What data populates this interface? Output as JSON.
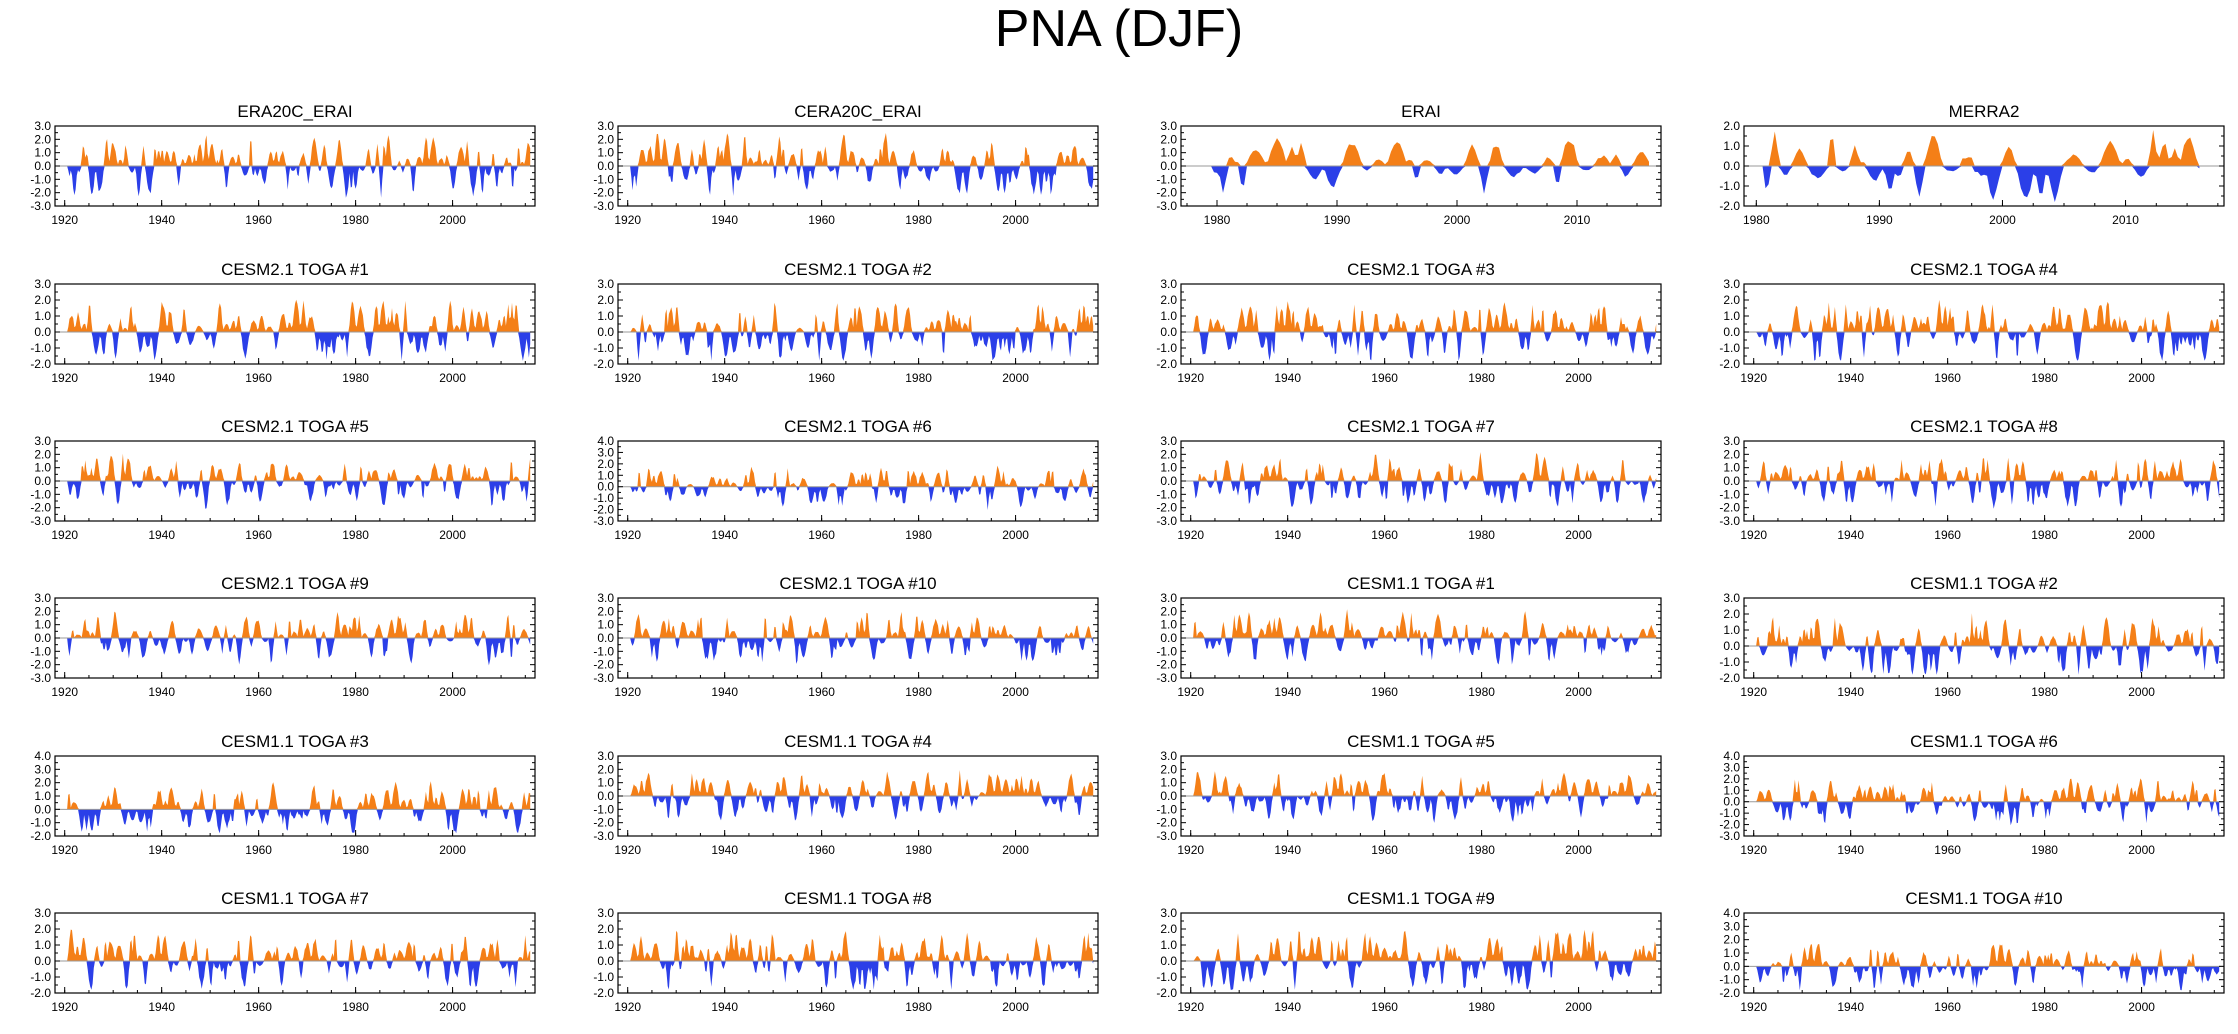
{
  "title": "PNA (DJF)",
  "colors": {
    "positive": "#f47f17",
    "negative": "#2b3fe8",
    "axis": "#000000"
  },
  "chart_data": [
    {
      "type": "area",
      "title": "ERA20C_ERAI",
      "x_start": 1920,
      "x_end": 2016,
      "xlim": [
        1918,
        2017
      ],
      "ylim": [
        -3,
        3
      ],
      "yticks": [
        "3.0",
        "2.0",
        "1.0",
        "0.0",
        "-1.0",
        "-2.0",
        "-3.0"
      ],
      "xticks": [
        "1920",
        "1940",
        "1960",
        "1980",
        "2000"
      ],
      "seed": 11,
      "amp": 1.2
    },
    {
      "type": "area",
      "title": "CERA20C_ERAI",
      "x_start": 1920,
      "x_end": 2016,
      "xlim": [
        1918,
        2017
      ],
      "ylim": [
        -3,
        3
      ],
      "yticks": [
        "3.0",
        "2.0",
        "1.0",
        "0.0",
        "-1.0",
        "-2.0",
        "-3.0"
      ],
      "xticks": [
        "1920",
        "1940",
        "1960",
        "1980",
        "2000"
      ],
      "seed": 12,
      "amp": 1.2
    },
    {
      "type": "area",
      "title": "ERAI",
      "x_start": 1979,
      "x_end": 2016,
      "xlim": [
        1977,
        2017
      ],
      "ylim": [
        -3,
        3
      ],
      "yticks": [
        "3.0",
        "2.0",
        "1.0",
        "0.0",
        "-1.0",
        "-2.0",
        "-3.0"
      ],
      "xticks": [
        "1980",
        "1990",
        "2000",
        "2010"
      ],
      "seed": 13,
      "amp": 1.1
    },
    {
      "type": "area",
      "title": "MERRA2",
      "x_start": 1980,
      "x_end": 2016,
      "xlim": [
        1979,
        2018
      ],
      "ylim": [
        -2,
        2
      ],
      "yticks": [
        "2.0",
        "1.0",
        "0.0",
        "-1.0",
        "-2.0"
      ],
      "xticks": [
        "1980",
        "1990",
        "2000",
        "2010"
      ],
      "seed": 14,
      "amp": 0.9
    },
    {
      "type": "area",
      "title": "CESM2.1 TOGA #1",
      "x_start": 1920,
      "x_end": 2016,
      "xlim": [
        1918,
        2017
      ],
      "ylim": [
        -2,
        3
      ],
      "yticks": [
        "3.0",
        "2.0",
        "1.0",
        "0.0",
        "-1.0",
        "-2.0"
      ],
      "xticks": [
        "1920",
        "1940",
        "1960",
        "1980",
        "2000"
      ],
      "seed": 21,
      "amp": 1.0
    },
    {
      "type": "area",
      "title": "CESM2.1 TOGA #2",
      "x_start": 1920,
      "x_end": 2016,
      "xlim": [
        1918,
        2017
      ],
      "ylim": [
        -2,
        3
      ],
      "yticks": [
        "3.0",
        "2.0",
        "1.0",
        "0.0",
        "-1.0",
        "-2.0"
      ],
      "xticks": [
        "1920",
        "1940",
        "1960",
        "1980",
        "2000"
      ],
      "seed": 22,
      "amp": 1.0
    },
    {
      "type": "area",
      "title": "CESM2.1 TOGA #3",
      "x_start": 1920,
      "x_end": 2016,
      "xlim": [
        1918,
        2017
      ],
      "ylim": [
        -2,
        3
      ],
      "yticks": [
        "3.0",
        "2.0",
        "1.0",
        "0.0",
        "-1.0",
        "-2.0"
      ],
      "xticks": [
        "1920",
        "1940",
        "1960",
        "1980",
        "2000"
      ],
      "seed": 23,
      "amp": 1.0
    },
    {
      "type": "area",
      "title": "CESM2.1 TOGA #4",
      "x_start": 1920,
      "x_end": 2016,
      "xlim": [
        1918,
        2017
      ],
      "ylim": [
        -2,
        3
      ],
      "yticks": [
        "3.0",
        "2.0",
        "1.0",
        "0.0",
        "-1.0",
        "-2.0"
      ],
      "xticks": [
        "1920",
        "1940",
        "1960",
        "1980",
        "2000"
      ],
      "seed": 24,
      "amp": 1.0
    },
    {
      "type": "area",
      "title": "CESM2.1 TOGA #5",
      "x_start": 1920,
      "x_end": 2016,
      "xlim": [
        1918,
        2017
      ],
      "ylim": [
        -3,
        3
      ],
      "yticks": [
        "3.0",
        "2.0",
        "1.0",
        "0.0",
        "-1.0",
        "-2.0",
        "-3.0"
      ],
      "xticks": [
        "1920",
        "1940",
        "1960",
        "1980",
        "2000"
      ],
      "seed": 25,
      "amp": 1.0
    },
    {
      "type": "area",
      "title": "CESM2.1 TOGA #6",
      "x_start": 1920,
      "x_end": 2016,
      "xlim": [
        1918,
        2017
      ],
      "ylim": [
        -3,
        4
      ],
      "yticks": [
        "4.0",
        "3.0",
        "2.0",
        "1.0",
        "0.0",
        "-1.0",
        "-2.0",
        "-3.0"
      ],
      "xticks": [
        "1920",
        "1940",
        "1960",
        "1980",
        "2000"
      ],
      "seed": 26,
      "amp": 1.0
    },
    {
      "type": "area",
      "title": "CESM2.1 TOGA #7",
      "x_start": 1920,
      "x_end": 2016,
      "xlim": [
        1918,
        2017
      ],
      "ylim": [
        -3,
        3
      ],
      "yticks": [
        "3.0",
        "2.0",
        "1.0",
        "0.0",
        "-1.0",
        "-2.0",
        "-3.0"
      ],
      "xticks": [
        "1920",
        "1940",
        "1960",
        "1980",
        "2000"
      ],
      "seed": 27,
      "amp": 1.0
    },
    {
      "type": "area",
      "title": "CESM2.1 TOGA #8",
      "x_start": 1920,
      "x_end": 2016,
      "xlim": [
        1918,
        2017
      ],
      "ylim": [
        -3,
        3
      ],
      "yticks": [
        "3.0",
        "2.0",
        "1.0",
        "0.0",
        "-1.0",
        "-2.0",
        "-3.0"
      ],
      "xticks": [
        "1920",
        "1940",
        "1960",
        "1980",
        "2000"
      ],
      "seed": 28,
      "amp": 1.0
    },
    {
      "type": "area",
      "title": "CESM2.1 TOGA #9",
      "x_start": 1920,
      "x_end": 2016,
      "xlim": [
        1918,
        2017
      ],
      "ylim": [
        -3,
        3
      ],
      "yticks": [
        "3.0",
        "2.0",
        "1.0",
        "0.0",
        "-1.0",
        "-2.0",
        "-3.0"
      ],
      "xticks": [
        "1920",
        "1940",
        "1960",
        "1980",
        "2000"
      ],
      "seed": 29,
      "amp": 1.0
    },
    {
      "type": "area",
      "title": "CESM2.1 TOGA #10",
      "x_start": 1920,
      "x_end": 2016,
      "xlim": [
        1918,
        2017
      ],
      "ylim": [
        -3,
        3
      ],
      "yticks": [
        "3.0",
        "2.0",
        "1.0",
        "0.0",
        "-1.0",
        "-2.0",
        "-3.0"
      ],
      "xticks": [
        "1920",
        "1940",
        "1960",
        "1980",
        "2000"
      ],
      "seed": 30,
      "amp": 1.0
    },
    {
      "type": "area",
      "title": "CESM1.1 TOGA #1",
      "x_start": 1920,
      "x_end": 2016,
      "xlim": [
        1918,
        2017
      ],
      "ylim": [
        -3,
        3
      ],
      "yticks": [
        "3.0",
        "2.0",
        "1.0",
        "0.0",
        "-1.0",
        "-2.0",
        "-3.0"
      ],
      "xticks": [
        "1920",
        "1940",
        "1960",
        "1980",
        "2000"
      ],
      "seed": 31,
      "amp": 1.0
    },
    {
      "type": "area",
      "title": "CESM1.1 TOGA #2",
      "x_start": 1920,
      "x_end": 2016,
      "xlim": [
        1918,
        2017
      ],
      "ylim": [
        -2,
        3
      ],
      "yticks": [
        "3.0",
        "2.0",
        "1.0",
        "0.0",
        "-1.0",
        "-2.0"
      ],
      "xticks": [
        "1920",
        "1940",
        "1960",
        "1980",
        "2000"
      ],
      "seed": 32,
      "amp": 1.0
    },
    {
      "type": "area",
      "title": "CESM1.1 TOGA #3",
      "x_start": 1920,
      "x_end": 2016,
      "xlim": [
        1918,
        2017
      ],
      "ylim": [
        -2,
        4
      ],
      "yticks": [
        "4.0",
        "3.0",
        "2.0",
        "1.0",
        "0.0",
        "-1.0",
        "-2.0"
      ],
      "xticks": [
        "1920",
        "1940",
        "1960",
        "1980",
        "2000"
      ],
      "seed": 33,
      "amp": 1.0
    },
    {
      "type": "area",
      "title": "CESM1.1 TOGA #4",
      "x_start": 1920,
      "x_end": 2016,
      "xlim": [
        1918,
        2017
      ],
      "ylim": [
        -3,
        3
      ],
      "yticks": [
        "3.0",
        "2.0",
        "1.0",
        "0.0",
        "-1.0",
        "-2.0",
        "-3.0"
      ],
      "xticks": [
        "1920",
        "1940",
        "1960",
        "1980",
        "2000"
      ],
      "seed": 34,
      "amp": 1.0
    },
    {
      "type": "area",
      "title": "CESM1.1 TOGA #5",
      "x_start": 1920,
      "x_end": 2016,
      "xlim": [
        1918,
        2017
      ],
      "ylim": [
        -3,
        3
      ],
      "yticks": [
        "3.0",
        "2.0",
        "1.0",
        "0.0",
        "-1.0",
        "-2.0",
        "-3.0"
      ],
      "xticks": [
        "1920",
        "1940",
        "1960",
        "1980",
        "2000"
      ],
      "seed": 35,
      "amp": 1.0
    },
    {
      "type": "area",
      "title": "CESM1.1 TOGA #6",
      "x_start": 1920,
      "x_end": 2016,
      "xlim": [
        1918,
        2017
      ],
      "ylim": [
        -3,
        4
      ],
      "yticks": [
        "4.0",
        "3.0",
        "2.0",
        "1.0",
        "0.0",
        "-1.0",
        "-2.0",
        "-3.0"
      ],
      "xticks": [
        "1920",
        "1940",
        "1960",
        "1980",
        "2000"
      ],
      "seed": 36,
      "amp": 1.0
    },
    {
      "type": "area",
      "title": "CESM1.1 TOGA #7",
      "x_start": 1920,
      "x_end": 2016,
      "xlim": [
        1918,
        2017
      ],
      "ylim": [
        -2,
        3
      ],
      "yticks": [
        "3.0",
        "2.0",
        "1.0",
        "0.0",
        "-1.0",
        "-2.0"
      ],
      "xticks": [
        "1920",
        "1940",
        "1960",
        "1980",
        "2000"
      ],
      "seed": 37,
      "amp": 1.0
    },
    {
      "type": "area",
      "title": "CESM1.1 TOGA #8",
      "x_start": 1920,
      "x_end": 2016,
      "xlim": [
        1918,
        2017
      ],
      "ylim": [
        -2,
        3
      ],
      "yticks": [
        "3.0",
        "2.0",
        "1.0",
        "0.0",
        "-1.0",
        "-2.0"
      ],
      "xticks": [
        "1920",
        "1940",
        "1960",
        "1980",
        "2000"
      ],
      "seed": 38,
      "amp": 1.0
    },
    {
      "type": "area",
      "title": "CESM1.1 TOGA #9",
      "x_start": 1920,
      "x_end": 2016,
      "xlim": [
        1918,
        2017
      ],
      "ylim": [
        -2,
        3
      ],
      "yticks": [
        "3.0",
        "2.0",
        "1.0",
        "0.0",
        "-1.0",
        "-2.0"
      ],
      "xticks": [
        "1920",
        "1940",
        "1960",
        "1980",
        "2000"
      ],
      "seed": 39,
      "amp": 1.0
    },
    {
      "type": "area",
      "title": "CESM1.1 TOGA #10",
      "x_start": 1920,
      "x_end": 2016,
      "xlim": [
        1918,
        2017
      ],
      "ylim": [
        -2,
        4
      ],
      "yticks": [
        "4.0",
        "3.0",
        "2.0",
        "1.0",
        "0.0",
        "-1.0",
        "-2.0"
      ],
      "xticks": [
        "1920",
        "1940",
        "1960",
        "1980",
        "2000"
      ],
      "seed": 40,
      "amp": 1.0
    }
  ]
}
